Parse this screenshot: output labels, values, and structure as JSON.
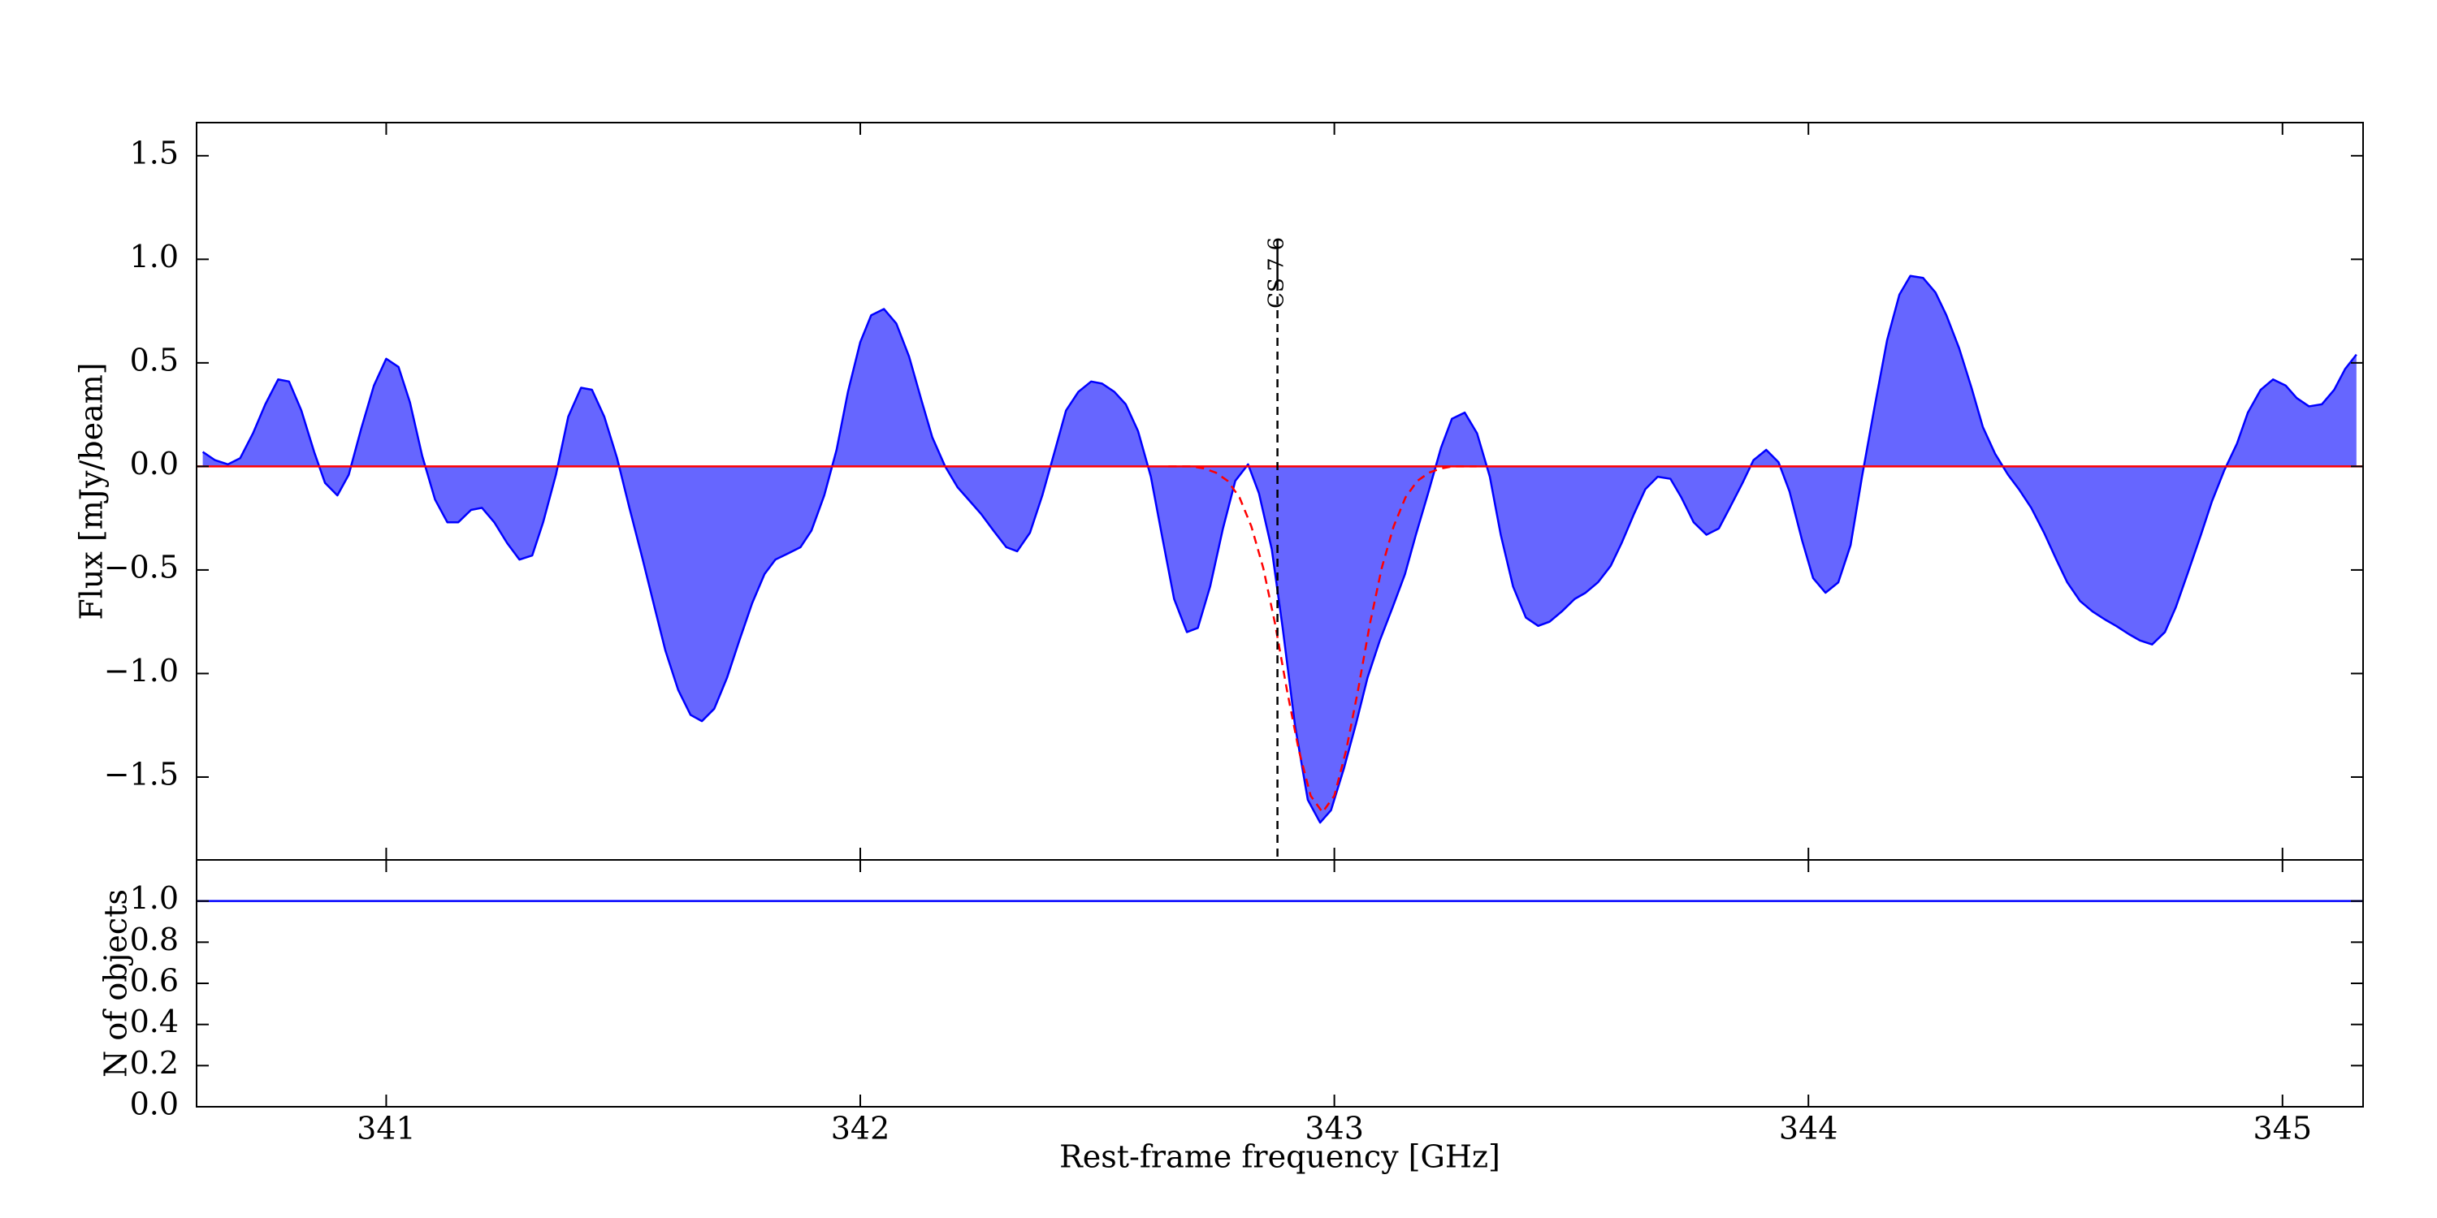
{
  "chart_data": [
    {
      "type": "area",
      "ylabel": "Flux [mJy/beam]",
      "xlim": [
        340.6,
        345.17
      ],
      "ylim": [
        -1.9,
        1.66
      ],
      "xticks": [
        341,
        342,
        343,
        344,
        345
      ],
      "yticks": [
        {
          "value": -1.5,
          "label": "−1.5"
        },
        {
          "value": -1.0,
          "label": "−1.0"
        },
        {
          "value": -0.5,
          "label": "−0.5"
        },
        {
          "value": 0.0,
          "label": "0.0"
        },
        0.5,
        {
          "value": 1.0,
          "label": "1.0"
        },
        1.5
      ],
      "x": [
        340.613,
        340.639,
        340.666,
        340.692,
        340.719,
        340.745,
        340.772,
        340.795,
        340.821,
        340.848,
        340.871,
        340.897,
        340.921,
        340.947,
        340.974,
        341.0,
        341.026,
        341.05,
        341.076,
        341.103,
        341.129,
        341.152,
        341.179,
        341.202,
        341.228,
        341.255,
        341.281,
        341.308,
        341.331,
        341.358,
        341.384,
        341.411,
        341.434,
        341.46,
        341.487,
        341.513,
        341.54,
        341.566,
        341.589,
        341.616,
        341.642,
        341.666,
        341.692,
        341.719,
        341.745,
        341.772,
        341.798,
        341.821,
        341.848,
        341.874,
        341.897,
        341.924,
        341.95,
        341.974,
        342.0,
        342.023,
        342.05,
        342.076,
        342.103,
        342.129,
        342.152,
        342.179,
        342.205,
        342.232,
        342.255,
        342.281,
        342.308,
        342.331,
        342.358,
        342.384,
        342.411,
        342.434,
        342.46,
        342.487,
        342.51,
        342.536,
        342.56,
        342.586,
        342.613,
        342.636,
        342.662,
        342.689,
        342.712,
        342.738,
        342.765,
        342.791,
        342.818,
        342.841,
        342.868,
        342.891,
        342.917,
        342.944,
        342.97,
        342.993,
        343.02,
        343.046,
        343.07,
        343.096,
        343.123,
        343.149,
        343.172,
        343.199,
        343.225,
        343.248,
        343.275,
        343.301,
        343.328,
        343.351,
        343.377,
        343.404,
        343.43,
        343.454,
        343.48,
        343.507,
        343.53,
        343.556,
        343.583,
        343.606,
        343.632,
        343.656,
        343.682,
        343.709,
        343.732,
        343.758,
        343.785,
        343.811,
        343.834,
        343.861,
        343.884,
        343.911,
        343.937,
        343.96,
        343.987,
        344.01,
        344.036,
        344.063,
        344.089,
        344.113,
        344.139,
        344.166,
        344.192,
        344.215,
        344.242,
        344.268,
        344.291,
        344.318,
        344.344,
        344.368,
        344.394,
        344.421,
        344.444,
        344.47,
        344.497,
        344.523,
        344.546,
        344.573,
        344.599,
        344.626,
        344.649,
        344.676,
        344.699,
        344.725,
        344.752,
        344.775,
        344.801,
        344.828,
        344.851,
        344.877,
        344.904,
        344.927,
        344.954,
        344.98,
        345.007,
        345.03,
        345.056,
        345.083,
        345.109,
        345.132,
        345.156
      ],
      "series": [
        {
          "color": "#0000ff",
          "fill": "#6666ff",
          "values": [
            0.07,
            0.03,
            0.01,
            0.04,
            0.16,
            0.3,
            0.42,
            0.41,
            0.27,
            0.07,
            -0.08,
            -0.14,
            -0.04,
            0.18,
            0.39,
            0.52,
            0.48,
            0.31,
            0.05,
            -0.16,
            -0.27,
            -0.27,
            -0.21,
            -0.2,
            -0.27,
            -0.37,
            -0.45,
            -0.43,
            -0.27,
            -0.04,
            0.24,
            0.38,
            0.37,
            0.24,
            0.04,
            -0.2,
            -0.44,
            -0.68,
            -0.89,
            -1.08,
            -1.2,
            -1.23,
            -1.17,
            -1.02,
            -0.84,
            -0.66,
            -0.52,
            -0.45,
            -0.42,
            -0.39,
            -0.31,
            -0.14,
            0.08,
            0.36,
            0.6,
            0.73,
            0.76,
            0.69,
            0.53,
            0.32,
            0.14,
            0.0,
            -0.1,
            -0.17,
            -0.23,
            -0.31,
            -0.39,
            -0.41,
            -0.32,
            -0.14,
            0.08,
            0.27,
            0.36,
            0.41,
            0.4,
            0.36,
            0.3,
            0.17,
            -0.05,
            -0.33,
            -0.64,
            -0.8,
            -0.78,
            -0.58,
            -0.3,
            -0.07,
            0.01,
            -0.13,
            -0.4,
            -0.78,
            -1.25,
            -1.61,
            -1.72,
            -1.66,
            -1.46,
            -1.24,
            -1.02,
            -0.84,
            -0.68,
            -0.52,
            -0.33,
            -0.12,
            0.09,
            0.23,
            0.26,
            0.16,
            -0.05,
            -0.33,
            -0.58,
            -0.73,
            -0.77,
            -0.75,
            -0.7,
            -0.64,
            -0.61,
            -0.56,
            -0.48,
            -0.37,
            -0.23,
            -0.11,
            -0.05,
            -0.06,
            -0.15,
            -0.27,
            -0.33,
            -0.3,
            -0.2,
            -0.08,
            0.03,
            0.08,
            0.02,
            -0.12,
            -0.36,
            -0.54,
            -0.61,
            -0.56,
            -0.38,
            -0.05,
            0.28,
            0.61,
            0.83,
            0.92,
            0.91,
            0.84,
            0.73,
            0.57,
            0.38,
            0.19,
            0.06,
            -0.04,
            -0.11,
            -0.2,
            -0.32,
            -0.45,
            -0.56,
            -0.65,
            -0.7,
            -0.74,
            -0.77,
            -0.81,
            -0.84,
            -0.86,
            -0.8,
            -0.68,
            -0.51,
            -0.33,
            -0.17,
            -0.02,
            0.11,
            0.26,
            0.37,
            0.42,
            0.39,
            0.33,
            0.29,
            0.3,
            0.37,
            0.47,
            0.54
          ]
        },
        {
          "color": "#ff0000",
          "style": "dashed",
          "x": [
            342.65,
            342.7,
            342.725,
            342.75,
            342.775,
            342.8,
            342.825,
            342.85,
            342.875,
            342.9,
            342.925,
            342.95,
            342.975,
            343.0,
            343.025,
            343.05,
            343.075,
            343.1,
            343.125,
            343.15,
            343.175,
            343.2,
            343.225,
            343.25,
            343.3
          ],
          "values": [
            0.0,
            0.0,
            -0.01,
            -0.03,
            -0.07,
            -0.15,
            -0.29,
            -0.49,
            -0.76,
            -1.08,
            -1.37,
            -1.59,
            -1.67,
            -1.59,
            -1.37,
            -1.08,
            -0.76,
            -0.49,
            -0.29,
            -0.15,
            -0.07,
            -0.03,
            -0.01,
            0.0,
            0.0
          ]
        }
      ],
      "hline": {
        "value": 0.0,
        "color": "#ff0000"
      },
      "annotations": [
        {
          "x": 342.88,
          "label": "CS 7-6"
        }
      ]
    },
    {
      "type": "line",
      "ylabel": "N of objects",
      "xlabel": "Rest-frame frequency [GHz]",
      "xlim": [
        340.6,
        345.17
      ],
      "ylim": [
        0,
        1.2
      ],
      "xticks": [
        341,
        342,
        343,
        344,
        345
      ],
      "yticks": [
        {
          "value": 0.0,
          "label": "0.0"
        },
        0.2,
        0.4,
        0.6,
        0.8,
        {
          "value": 1.0,
          "label": "1.0"
        }
      ],
      "x": [
        340.6,
        345.17
      ],
      "series": [
        {
          "color": "#0000ff",
          "values": [
            1.0,
            1.0
          ]
        }
      ]
    }
  ]
}
